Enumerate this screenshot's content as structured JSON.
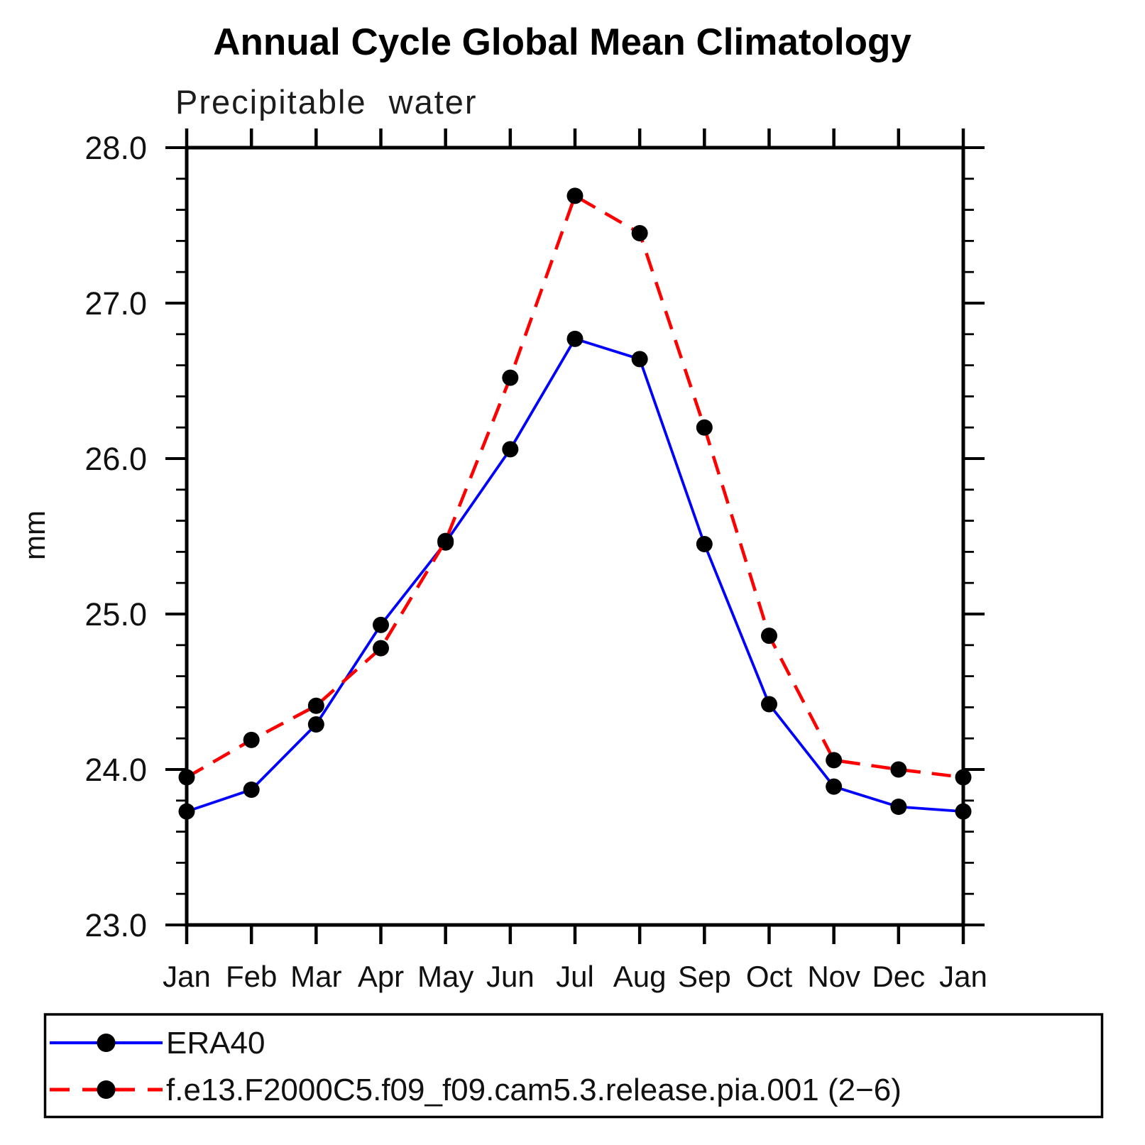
{
  "chart_data": {
    "type": "line",
    "title": "Annual Cycle Global Mean Climatology",
    "subtitle": "Precipitable water",
    "ylabel": "mm",
    "xlabel": "",
    "categories": [
      "Jan",
      "Feb",
      "Mar",
      "Apr",
      "May",
      "Jun",
      "Jul",
      "Aug",
      "Sep",
      "Oct",
      "Nov",
      "Dec",
      "Jan"
    ],
    "series": [
      {
        "name": "ERA40",
        "color": "#0000ff",
        "line_style": "solid",
        "marker": "filled-circle",
        "marker_color": "#000000",
        "values": [
          23.73,
          23.87,
          24.29,
          24.93,
          25.46,
          26.06,
          26.77,
          26.64,
          25.45,
          24.42,
          23.89,
          23.76,
          23.73
        ]
      },
      {
        "name": "f.e13.F2000C5.f09_f09.cam5.3.release.pia.001 (2−6)",
        "color": "#ff0000",
        "line_style": "dashed",
        "marker": "filled-circle",
        "marker_color": "#000000",
        "values": [
          23.95,
          24.19,
          24.41,
          24.78,
          25.47,
          26.52,
          27.69,
          27.45,
          26.2,
          24.86,
          24.06,
          24.0,
          23.95
        ]
      }
    ],
    "ylim": [
      23.0,
      28.0
    ],
    "ytick_labels": [
      "23.0",
      "24.0",
      "25.0",
      "26.0",
      "27.0",
      "28.0"
    ],
    "ytick_step": 1.0,
    "ytick_minor_step": 0.2,
    "grid": false,
    "legend_position": "bottom",
    "axis_color": "#000000",
    "background_color": "#ffffff"
  }
}
